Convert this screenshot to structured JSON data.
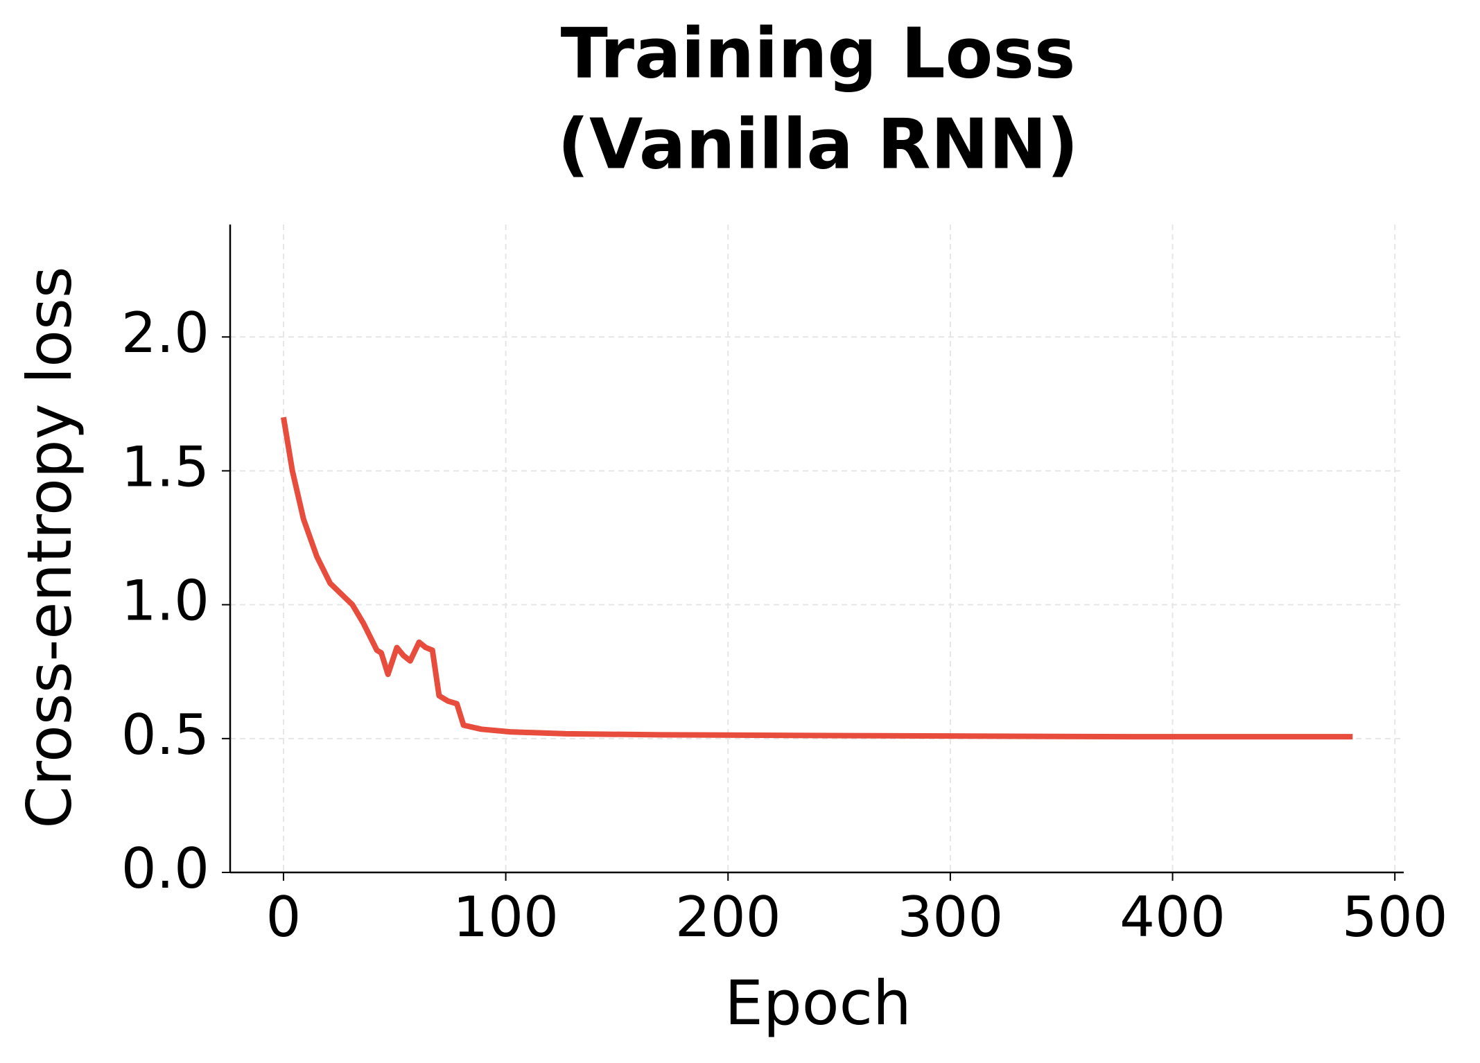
{
  "chart_data": {
    "type": "line",
    "title": [
      "Training Loss",
      "(Vanilla RNN)"
    ],
    "x_label": "Epoch",
    "y_label": "Cross-entropy loss",
    "x": [
      0,
      4,
      9,
      15,
      21,
      31,
      36,
      42,
      44,
      47,
      51,
      54,
      57,
      61,
      64,
      67,
      70,
      74,
      78,
      81,
      89,
      102,
      127,
      170,
      255,
      382,
      481
    ],
    "series": [
      {
        "name": "Training loss",
        "color": "#e74c3c",
        "values": [
          1.7,
          1.5,
          1.32,
          1.18,
          1.08,
          1.0,
          0.93,
          0.83,
          0.82,
          0.74,
          0.84,
          0.81,
          0.79,
          0.86,
          0.84,
          0.83,
          0.66,
          0.64,
          0.63,
          0.55,
          0.535,
          0.525,
          0.518,
          0.514,
          0.511,
          0.507,
          0.507
        ]
      }
    ],
    "xlim": [
      -24,
      504
    ],
    "ylim": [
      0,
      2.42
    ],
    "xticks": [
      0,
      100,
      200,
      300,
      400,
      500
    ],
    "yticks": [
      {
        "value": 0,
        "label": "0.0"
      },
      0.5,
      {
        "value": 1,
        "label": "1.0"
      },
      1.5,
      {
        "value": 2,
        "label": "2.0"
      }
    ],
    "grid": true
  }
}
